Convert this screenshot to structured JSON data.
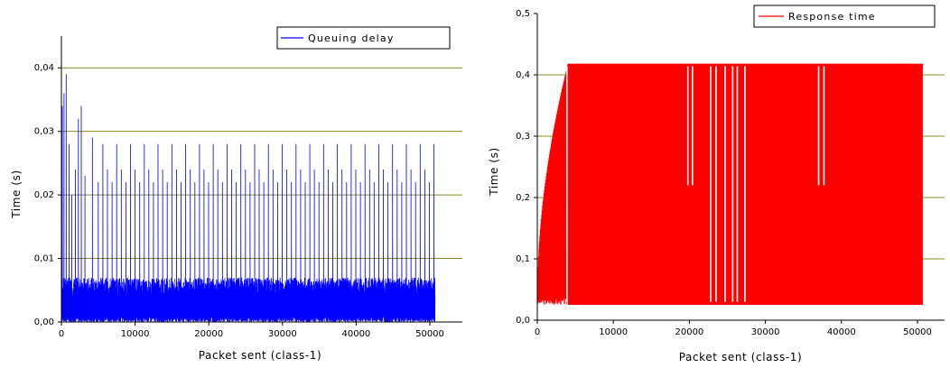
{
  "chart_data": [
    {
      "type": "line",
      "xlabel": "Packet sent (class-1)",
      "ylabel": "Time (s)",
      "xlim": [
        0,
        53000
      ],
      "ylim": [
        0,
        0.045
      ],
      "xticks": [
        0,
        10000,
        20000,
        30000,
        40000,
        50000
      ],
      "xtick_labels": [
        "0",
        "10000",
        "20000",
        "30000",
        "40000",
        "50000"
      ],
      "yticks": [
        0.0,
        0.01,
        0.02,
        0.03,
        0.04
      ],
      "ytick_labels": [
        "0,00",
        "0,01",
        "0,02",
        "0,03",
        "0,04"
      ],
      "grid": "horizontal",
      "legend_position": "top-right",
      "series": [
        {
          "name": "Queuing delay",
          "color": "#0000ff",
          "pattern": {
            "x_end": 50700,
            "baseline_low": 0.0,
            "typical_high": 0.007,
            "periodic_peaks": [
              0.028,
              0.024,
              0.022
            ],
            "initial_peaks": [
              {
                "x": 120,
                "y": 0.034
              },
              {
                "x": 350,
                "y": 0.036
              },
              {
                "x": 650,
                "y": 0.039
              },
              {
                "x": 1050,
                "y": 0.028
              },
              {
                "x": 1400,
                "y": 0.02
              },
              {
                "x": 1900,
                "y": 0.024
              },
              {
                "x": 2300,
                "y": 0.032
              },
              {
                "x": 2700,
                "y": 0.034
              },
              {
                "x": 3200,
                "y": 0.023
              },
              {
                "x": 4200,
                "y": 0.029
              }
            ]
          }
        }
      ]
    },
    {
      "type": "line",
      "xlabel": "Packet sent (class-1)",
      "ylabel": "Time (s)",
      "xlim": [
        0,
        53000
      ],
      "ylim": [
        0,
        0.5
      ],
      "xticks": [
        0,
        10000,
        20000,
        30000,
        40000,
        50000
      ],
      "xtick_labels": [
        "0",
        "10000",
        "20000",
        "30000",
        "40000",
        "50000"
      ],
      "yticks": [
        0.0,
        0.1,
        0.2,
        0.3,
        0.4,
        0.5
      ],
      "ytick_labels": [
        "0,0",
        "0,1",
        "0,2",
        "0,3",
        "0,4",
        "0,5"
      ],
      "grid": "horizontal",
      "legend_position": "top-right",
      "series": [
        {
          "name": "Response time",
          "color": "#ff0000",
          "pattern": {
            "x_end": 50700,
            "high": 0.418,
            "low": 0.025,
            "ramp_end_x": 4000,
            "dip_to_0_22_x": [
              19800,
              20400,
              37000,
              37700
            ],
            "dip_to_0_03_x": [
              3900,
              22800,
              23500,
              24700,
              25700,
              26300,
              27300
            ]
          }
        }
      ]
    }
  ]
}
